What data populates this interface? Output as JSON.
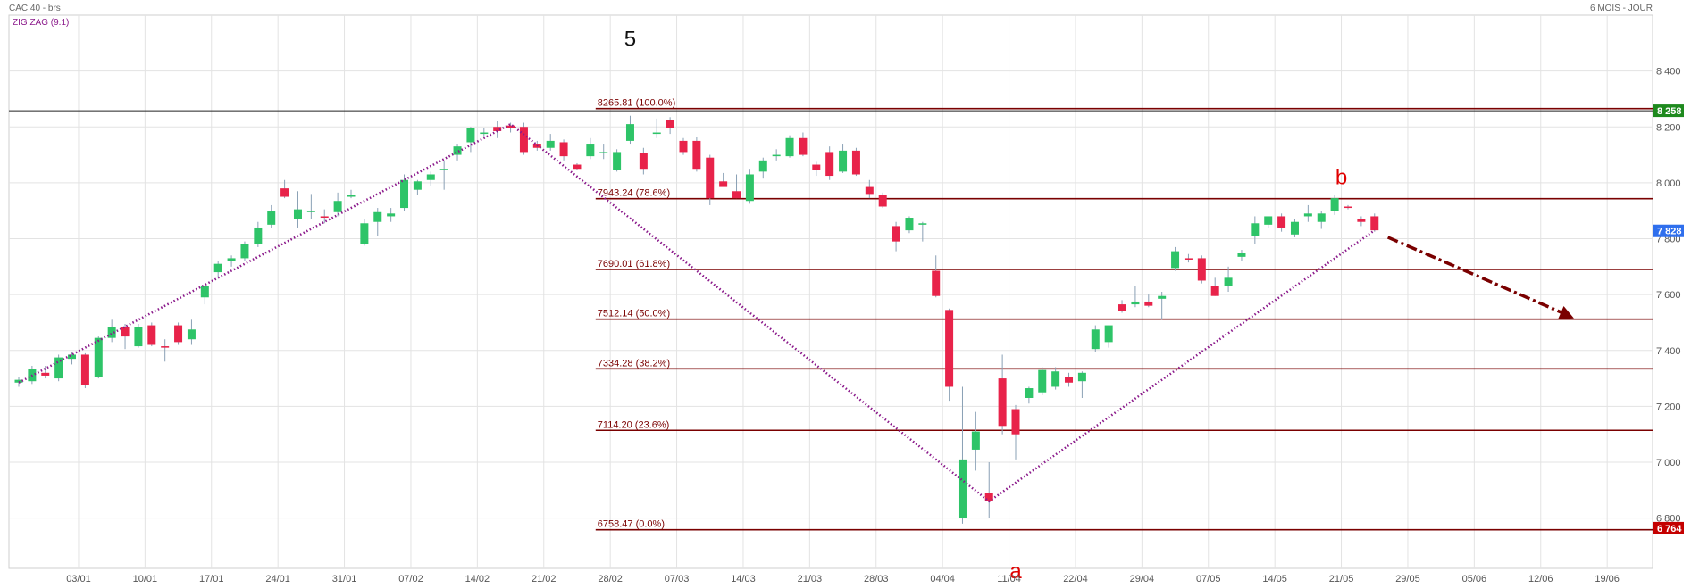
{
  "header": {
    "instrument": "CAC 40 - brs",
    "indicator": "ZIG ZAG (9.1)",
    "period": "6 MOIS - JOUR"
  },
  "colors": {
    "up": "#2ec468",
    "down": "#e8234a",
    "fib_line": "#7a0000",
    "zigzag": "#8b1a8b",
    "projection": "#7a0000",
    "grid": "#e3e3e3",
    "last_price_tag": "#2f6fed",
    "high_tag": "#1e8a1e",
    "low_tag": "#c40000",
    "wave_label_b": "#e00000",
    "wave_label_a": "#e00000"
  },
  "chart_data": {
    "type": "candlestick",
    "y_ticks": [
      "8 400",
      "8 200",
      "8 000",
      "7 800",
      "7 600",
      "7 400",
      "7 200",
      "7 000",
      "6 800"
    ],
    "y_tick_values": [
      8400,
      8200,
      8000,
      7800,
      7600,
      7400,
      7200,
      7000,
      6800
    ],
    "ylim": [
      6620,
      8600
    ],
    "x_ticks": [
      "03/01",
      "10/01",
      "17/01",
      "24/01",
      "31/01",
      "07/02",
      "14/02",
      "21/02",
      "28/02",
      "07/03",
      "14/03",
      "21/03",
      "28/03",
      "04/04",
      "11/04",
      "22/04",
      "29/04",
      "07/05",
      "14/05",
      "21/05",
      "29/05",
      "05/06",
      "12/06",
      "19/06"
    ],
    "x_tick_index": [
      4.5,
      9.5,
      14.5,
      19.5,
      24.5,
      29.5,
      34.5,
      39.5,
      44.5,
      49.5,
      54.5,
      59.5,
      64.5,
      69.5,
      74.5,
      79.5,
      84.5,
      89.5,
      94.5,
      99.5,
      104.5,
      109.5,
      114.5,
      119.5
    ],
    "candles": [
      {
        "o": 7285,
        "h": 7305,
        "l": 7270,
        "c": 7295
      },
      {
        "o": 7290,
        "h": 7345,
        "l": 7280,
        "c": 7335
      },
      {
        "o": 7320,
        "h": 7345,
        "l": 7300,
        "c": 7310
      },
      {
        "o": 7300,
        "h": 7385,
        "l": 7290,
        "c": 7375
      },
      {
        "o": 7370,
        "h": 7395,
        "l": 7350,
        "c": 7385
      },
      {
        "o": 7385,
        "h": 7390,
        "l": 7265,
        "c": 7275
      },
      {
        "o": 7305,
        "h": 7450,
        "l": 7300,
        "c": 7445
      },
      {
        "o": 7445,
        "h": 7510,
        "l": 7430,
        "c": 7485
      },
      {
        "o": 7485,
        "h": 7495,
        "l": 7405,
        "c": 7450
      },
      {
        "o": 7415,
        "h": 7495,
        "l": 7410,
        "c": 7485
      },
      {
        "o": 7490,
        "h": 7500,
        "l": 7415,
        "c": 7420
      },
      {
        "o": 7415,
        "h": 7440,
        "l": 7360,
        "c": 7410
      },
      {
        "o": 7490,
        "h": 7500,
        "l": 7420,
        "c": 7430
      },
      {
        "o": 7440,
        "h": 7510,
        "l": 7420,
        "c": 7475
      },
      {
        "o": 7590,
        "h": 7630,
        "l": 7565,
        "c": 7630
      },
      {
        "o": 7680,
        "h": 7720,
        "l": 7660,
        "c": 7710
      },
      {
        "o": 7720,
        "h": 7740,
        "l": 7700,
        "c": 7730
      },
      {
        "o": 7730,
        "h": 7790,
        "l": 7720,
        "c": 7780
      },
      {
        "o": 7780,
        "h": 7860,
        "l": 7770,
        "c": 7840
      },
      {
        "o": 7850,
        "h": 7920,
        "l": 7840,
        "c": 7900
      },
      {
        "o": 7980,
        "h": 8010,
        "l": 7945,
        "c": 7950
      },
      {
        "o": 7870,
        "h": 7970,
        "l": 7840,
        "c": 7905
      },
      {
        "o": 7895,
        "h": 7960,
        "l": 7870,
        "c": 7900
      },
      {
        "o": 7880,
        "h": 7905,
        "l": 7855,
        "c": 7875
      },
      {
        "o": 7895,
        "h": 7965,
        "l": 7880,
        "c": 7935
      },
      {
        "o": 7950,
        "h": 7975,
        "l": 7945,
        "c": 7958
      },
      {
        "o": 7780,
        "h": 7870,
        "l": 7775,
        "c": 7855
      },
      {
        "o": 7860,
        "h": 7910,
        "l": 7810,
        "c": 7895
      },
      {
        "o": 7880,
        "h": 7910,
        "l": 7860,
        "c": 7890
      },
      {
        "o": 7910,
        "h": 8030,
        "l": 7900,
        "c": 8010
      },
      {
        "o": 7975,
        "h": 8010,
        "l": 7955,
        "c": 8005
      },
      {
        "o": 8010,
        "h": 8040,
        "l": 7990,
        "c": 8030
      },
      {
        "o": 8050,
        "h": 8080,
        "l": 7975,
        "c": 8050
      },
      {
        "o": 8100,
        "h": 8140,
        "l": 8080,
        "c": 8130
      },
      {
        "o": 8145,
        "h": 8200,
        "l": 8110,
        "c": 8195
      },
      {
        "o": 8175,
        "h": 8195,
        "l": 8160,
        "c": 8180
      },
      {
        "o": 8200,
        "h": 8220,
        "l": 8160,
        "c": 8185
      },
      {
        "o": 8205,
        "h": 8215,
        "l": 8180,
        "c": 8195
      },
      {
        "o": 8200,
        "h": 8215,
        "l": 8100,
        "c": 8110
      },
      {
        "o": 8140,
        "h": 8150,
        "l": 8115,
        "c": 8125
      },
      {
        "o": 8125,
        "h": 8175,
        "l": 8115,
        "c": 8150
      },
      {
        "o": 8145,
        "h": 8155,
        "l": 8080,
        "c": 8095
      },
      {
        "o": 8065,
        "h": 8070,
        "l": 8045,
        "c": 8050
      },
      {
        "o": 8095,
        "h": 8160,
        "l": 8085,
        "c": 8140
      },
      {
        "o": 8105,
        "h": 8140,
        "l": 8085,
        "c": 8110
      },
      {
        "o": 8045,
        "h": 8120,
        "l": 8040,
        "c": 8110
      },
      {
        "o": 8150,
        "h": 8240,
        "l": 8140,
        "c": 8210
      },
      {
        "o": 8105,
        "h": 8125,
        "l": 8030,
        "c": 8050
      },
      {
        "o": 8175,
        "h": 8230,
        "l": 8160,
        "c": 8180
      },
      {
        "o": 8225,
        "h": 8235,
        "l": 8175,
        "c": 8195
      },
      {
        "o": 8150,
        "h": 8160,
        "l": 8100,
        "c": 8110
      },
      {
        "o": 8150,
        "h": 8165,
        "l": 8040,
        "c": 8050
      },
      {
        "o": 8090,
        "h": 8100,
        "l": 7920,
        "c": 7945
      },
      {
        "o": 8005,
        "h": 8035,
        "l": 7990,
        "c": 7985
      },
      {
        "o": 7970,
        "h": 8030,
        "l": 7945,
        "c": 7945
      },
      {
        "o": 7935,
        "h": 8050,
        "l": 7925,
        "c": 8030
      },
      {
        "o": 8040,
        "h": 8090,
        "l": 8015,
        "c": 8080
      },
      {
        "o": 8095,
        "h": 8120,
        "l": 8080,
        "c": 8100
      },
      {
        "o": 8095,
        "h": 8170,
        "l": 8090,
        "c": 8160
      },
      {
        "o": 8160,
        "h": 8180,
        "l": 8095,
        "c": 8100
      },
      {
        "o": 8065,
        "h": 8075,
        "l": 8025,
        "c": 8045
      },
      {
        "o": 8110,
        "h": 8130,
        "l": 8010,
        "c": 8025
      },
      {
        "o": 8040,
        "h": 8140,
        "l": 8035,
        "c": 8115
      },
      {
        "o": 8115,
        "h": 8125,
        "l": 8025,
        "c": 8030
      },
      {
        "o": 7985,
        "h": 8010,
        "l": 7945,
        "c": 7960
      },
      {
        "o": 7955,
        "h": 7965,
        "l": 7910,
        "c": 7915
      },
      {
        "o": 7845,
        "h": 7860,
        "l": 7755,
        "c": 7790
      },
      {
        "o": 7830,
        "h": 7880,
        "l": 7820,
        "c": 7875
      },
      {
        "o": 7850,
        "h": 7860,
        "l": 7790,
        "c": 7855
      },
      {
        "o": 7685,
        "h": 7740,
        "l": 7590,
        "c": 7595
      },
      {
        "o": 7545,
        "h": 7550,
        "l": 7220,
        "c": 7270
      },
      {
        "o": 6800,
        "h": 7270,
        "l": 6780,
        "c": 7010
      },
      {
        "o": 7045,
        "h": 7180,
        "l": 6970,
        "c": 7110
      },
      {
        "o": 6890,
        "h": 7000,
        "l": 6800,
        "c": 6860
      },
      {
        "o": 7300,
        "h": 7385,
        "l": 7100,
        "c": 7130
      },
      {
        "o": 7190,
        "h": 7205,
        "l": 7010,
        "c": 7100
      },
      {
        "o": 7230,
        "h": 7270,
        "l": 7210,
        "c": 7265
      },
      {
        "o": 7250,
        "h": 7340,
        "l": 7240,
        "c": 7330
      },
      {
        "o": 7270,
        "h": 7340,
        "l": 7260,
        "c": 7325
      },
      {
        "o": 7305,
        "h": 7320,
        "l": 7270,
        "c": 7285
      },
      {
        "o": 7290,
        "h": 7325,
        "l": 7230,
        "c": 7320
      },
      {
        "o": 7405,
        "h": 7490,
        "l": 7395,
        "c": 7475
      },
      {
        "o": 7430,
        "h": 7490,
        "l": 7410,
        "c": 7490
      },
      {
        "o": 7565,
        "h": 7580,
        "l": 7535,
        "c": 7540
      },
      {
        "o": 7565,
        "h": 7630,
        "l": 7555,
        "c": 7575
      },
      {
        "o": 7575,
        "h": 7600,
        "l": 7555,
        "c": 7560
      },
      {
        "o": 7585,
        "h": 7610,
        "l": 7510,
        "c": 7595
      },
      {
        "o": 7695,
        "h": 7770,
        "l": 7685,
        "c": 7755
      },
      {
        "o": 7730,
        "h": 7745,
        "l": 7715,
        "c": 7725
      },
      {
        "o": 7730,
        "h": 7740,
        "l": 7640,
        "c": 7650
      },
      {
        "o": 7630,
        "h": 7660,
        "l": 7595,
        "c": 7595
      },
      {
        "o": 7630,
        "h": 7700,
        "l": 7610,
        "c": 7660
      },
      {
        "o": 7735,
        "h": 7760,
        "l": 7720,
        "c": 7750
      },
      {
        "o": 7810,
        "h": 7880,
        "l": 7780,
        "c": 7855
      },
      {
        "o": 7850,
        "h": 7880,
        "l": 7840,
        "c": 7880
      },
      {
        "o": 7880,
        "h": 7890,
        "l": 7825,
        "c": 7840
      },
      {
        "o": 7815,
        "h": 7870,
        "l": 7805,
        "c": 7860
      },
      {
        "o": 7880,
        "h": 7920,
        "l": 7860,
        "c": 7890
      },
      {
        "o": 7860,
        "h": 7900,
        "l": 7835,
        "c": 7890
      },
      {
        "o": 7900,
        "h": 7955,
        "l": 7885,
        "c": 7945
      },
      {
        "o": 7915,
        "h": 7920,
        "l": 7905,
        "c": 7910
      },
      {
        "o": 7870,
        "h": 7880,
        "l": 7845,
        "c": 7860
      },
      {
        "o": 7880,
        "h": 7890,
        "l": 7825,
        "c": 7830
      }
    ],
    "fib_levels": [
      {
        "label": "8265.81  (100.0%)",
        "value": 8265.81
      },
      {
        "label": "7943.24  (78.6%)",
        "value": 7943.24
      },
      {
        "label": "7690.01  (61.8%)",
        "value": 7690.01
      },
      {
        "label": "7512.14  (50.0%)",
        "value": 7512.14
      },
      {
        "label": "7334.28  (38.2%)",
        "value": 7334.28
      },
      {
        "label": "7114.20  (23.6%)",
        "value": 7114.2
      },
      {
        "label": "6758.47  (0.0%)",
        "value": 6758.47
      }
    ],
    "zigzag": [
      {
        "i": 0,
        "v": 7285
      },
      {
        "i": 37,
        "v": 8210
      },
      {
        "i": 73,
        "v": 6860
      },
      {
        "i": 102,
        "v": 7830
      }
    ],
    "projection": {
      "from": {
        "i": 103,
        "v": 7805
      },
      "to": {
        "i": 117,
        "v": 7515
      }
    },
    "resistance_line": 8258,
    "price_tags": [
      {
        "label": "8 258",
        "value": 8258,
        "role": "high"
      },
      {
        "label": "7 828",
        "value": 7828,
        "role": "last"
      },
      {
        "label": "6 764",
        "value": 6764,
        "role": "low"
      }
    ],
    "wave_labels": [
      {
        "text": "5",
        "i": 46,
        "v": 8490,
        "color": "#111111"
      },
      {
        "text": "b",
        "i": 99.5,
        "v": 7995,
        "color": "#e00000"
      },
      {
        "text": "a",
        "i": 75,
        "v": 6585,
        "color": "#e00000"
      }
    ]
  }
}
